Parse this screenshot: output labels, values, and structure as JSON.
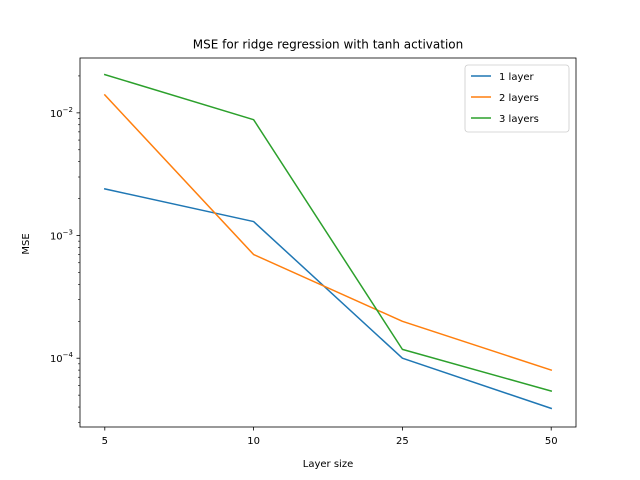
{
  "chart_data": {
    "type": "line",
    "title": "MSE for ridge regression with tanh activation",
    "xlabel": "Layer size",
    "ylabel": "MSE",
    "y_scale": "log",
    "ylim": [
      2.75e-05,
      0.028
    ],
    "categories": [
      "5",
      "10",
      "25",
      "50"
    ],
    "y_ticks": [
      {
        "value": 0.0001,
        "base": "10",
        "exp": "−4"
      },
      {
        "value": 0.001,
        "base": "10",
        "exp": "−3"
      },
      {
        "value": 0.01,
        "base": "10",
        "exp": "−2"
      }
    ],
    "grid": false,
    "legend_position": "top-right",
    "series": [
      {
        "name": "1 layer",
        "color": "#1f77b4",
        "values": [
          0.0024,
          0.0013,
          0.0001,
          3.9e-05
        ]
      },
      {
        "name": "2 layers",
        "color": "#ff7f0e",
        "values": [
          0.014,
          0.0007,
          0.0002,
          8e-05
        ]
      },
      {
        "name": "3 layers",
        "color": "#2ca02c",
        "values": [
          0.0205,
          0.0088,
          0.000118,
          5.4e-05
        ]
      }
    ]
  }
}
